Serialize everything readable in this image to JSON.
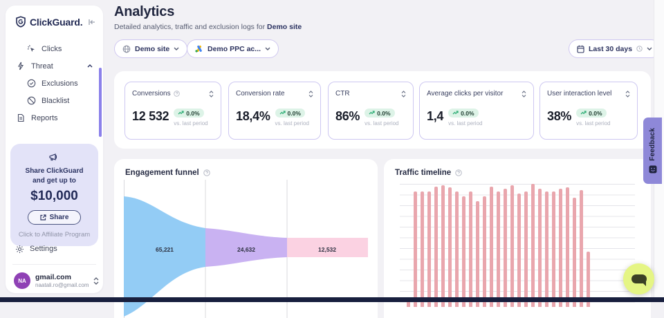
{
  "brand": {
    "name": "ClickGuard."
  },
  "sidebar": {
    "nav": [
      {
        "label": "Clicks"
      },
      {
        "label": "Threat"
      },
      {
        "label": "Exclusions"
      },
      {
        "label": "Blacklist"
      },
      {
        "label": "Reports"
      }
    ],
    "promo": {
      "headline": "Share ClickGuard and get up to",
      "amount": "$10,000",
      "share_label": "Share",
      "footnote": "Click to Affiliate Program"
    },
    "settings_label": "Settings",
    "account": {
      "initials": "NA",
      "name": "gmail.com",
      "email": "naatali.ro@gmail.com"
    }
  },
  "header": {
    "title": "Analytics",
    "subtitle": "Detailed analytics, traffic and exclusion logs for",
    "subtitle_target": "Demo site"
  },
  "filters": {
    "site_label": "Demo site",
    "ppc_account_label": "Demo PPC ac...",
    "date_label": "Last 30 days"
  },
  "stats": [
    {
      "label": "Conversions",
      "value": "12 532",
      "change": "0.0%",
      "caption": "vs. last period"
    },
    {
      "label": "Conversion rate",
      "value": "18,4%",
      "change": "0.0%",
      "caption": "vs. last period"
    },
    {
      "label": "CTR",
      "value": "86%",
      "change": "0.0%",
      "caption": "vs. last period"
    },
    {
      "label": "Average clicks per visitor",
      "value": "1,4",
      "change": "0.0%",
      "caption": "vs. last period"
    },
    {
      "label": "User interaction level",
      "value": "38%",
      "change": "0.0%",
      "caption": "vs. last period"
    }
  ],
  "feedback_label": "Feedback",
  "colors": {
    "badge_green_bg": "#ddf3e7",
    "badge_green_arrow": "#2fae76",
    "accent_purple": "#8e88d8",
    "brand_navy": "#222a54",
    "chat_fab": "#e5f584"
  },
  "chart_data": [
    {
      "type": "funnel",
      "title": "Engagement funnel",
      "stages": [
        {
          "label": "65,221",
          "value": 65221,
          "color": "#93ccf5"
        },
        {
          "label": "24,632",
          "value": 24632,
          "color": "#c9b2f2"
        },
        {
          "label": "12,532",
          "value": 12532,
          "color": "#fbd2e2"
        }
      ],
      "grid": true
    },
    {
      "type": "bar",
      "title": "Traffic timeline",
      "bar_color": "#e9a6ad",
      "ylim": [
        0,
        100
      ],
      "grid": true,
      "xlabel": "",
      "ylabel": "",
      "values": [
        8,
        94,
        94,
        94,
        98,
        99,
        97,
        94,
        90,
        94,
        86,
        90,
        98,
        94,
        96,
        99,
        92,
        94,
        100,
        96,
        94,
        94,
        96,
        97,
        89,
        95,
        45
      ]
    }
  ]
}
